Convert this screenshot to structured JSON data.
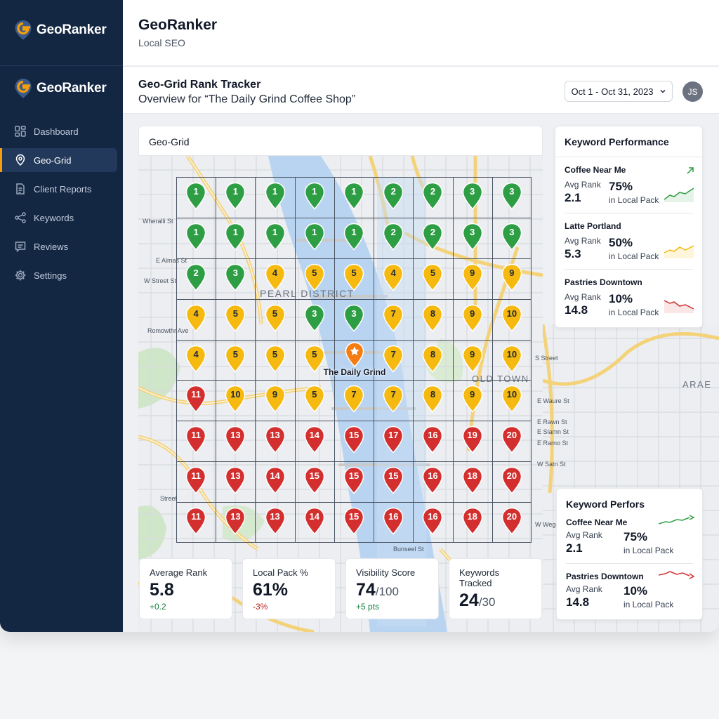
{
  "brand": {
    "name": "GeoRanker",
    "accent": "#f59e0b"
  },
  "sidebar": {
    "items": [
      {
        "label": "Dashboard",
        "icon": "dashboard-icon"
      },
      {
        "label": "Geo-Grid",
        "icon": "map-pin-icon",
        "active": true
      },
      {
        "label": "Client Reports",
        "icon": "document-icon"
      },
      {
        "label": "Keywords",
        "icon": "share-nodes-icon"
      },
      {
        "label": "Reviews",
        "icon": "message-icon"
      },
      {
        "label": "Settings",
        "icon": "gear-icon"
      }
    ]
  },
  "top_header": {
    "title": "GeoRanker",
    "subtitle": "Local SEO"
  },
  "page_header": {
    "title": "Geo-Grid Rank Tracker",
    "subtitle": "Overview for “The Daily Grind Coffee Shop”",
    "date_range": "Oct 1 - Oct 31, 2023",
    "avatar_initials": "JS"
  },
  "geo_grid": {
    "title": "Geo-Grid",
    "business_name": "The Daily Grind",
    "district_labels": [
      "PEARL DISTRICT",
      "OLD TOWN",
      "ARAE"
    ],
    "street_labels": [
      "Wheralli St",
      "E Almas St",
      "W Street St",
      "Romowthr Ave",
      "S Street",
      "E Waure St",
      "E Rawn St",
      "E Slamn St",
      "E Rarno St",
      "W Satn St",
      "W Wege",
      "Street",
      "Bunseel St"
    ],
    "rows": [
      [
        1,
        1,
        1,
        1,
        1,
        2,
        2,
        3,
        3
      ],
      [
        1,
        1,
        1,
        1,
        1,
        2,
        2,
        3,
        3
      ],
      [
        2,
        3,
        4,
        5,
        5,
        4,
        5,
        9,
        9
      ],
      [
        4,
        5,
        5,
        3,
        3,
        7,
        8,
        9,
        10
      ],
      [
        4,
        5,
        5,
        5,
        null,
        7,
        8,
        9,
        10
      ],
      [
        11,
        10,
        9,
        5,
        7,
        7,
        8,
        9,
        10
      ],
      [
        11,
        13,
        13,
        14,
        15,
        17,
        16,
        19,
        20
      ],
      [
        11,
        13,
        14,
        15,
        15,
        15,
        16,
        18,
        20
      ],
      [
        11,
        13,
        13,
        14,
        15,
        16,
        16,
        18,
        20
      ]
    ],
    "colors": {
      "green": "#2e9e44",
      "yellow": "#f5b90f",
      "red": "#d32f2f",
      "business": "#f57c10"
    }
  },
  "stats": [
    {
      "label": "Average Rank",
      "value": "5.8",
      "suffix": "",
      "change": "+0.2",
      "trend": "pos"
    },
    {
      "label": "Local Pack %",
      "value": "61%",
      "suffix": "",
      "change": "-3%",
      "trend": "neg"
    },
    {
      "label": "Visibility Score",
      "value": "74",
      "suffix": "/100",
      "change": "+5 pts",
      "trend": "pos"
    },
    {
      "label": "Keywords Tracked",
      "value": "24",
      "suffix": "/30",
      "change": "",
      "trend": ""
    }
  ],
  "keyword_panel_1": {
    "title": "Keyword Performance",
    "items": [
      {
        "name": "Coffee Near Me",
        "avg_label": "Avg Rank",
        "avg": "2.1",
        "pct": "75%",
        "pct_label": "in Local Pack",
        "trend_color": "#2e9e44"
      },
      {
        "name": "Latte Portland",
        "avg_label": "Avg Rank",
        "avg": "5.3",
        "pct": "50%",
        "pct_label": "in Local Pack",
        "trend_color": "#f5b90f"
      },
      {
        "name": "Pastries Downtown",
        "avg_label": "Avg Rank",
        "avg": "14.8",
        "pct": "10%",
        "pct_label": "in Local Pack",
        "trend_color": "#d32f2f"
      }
    ]
  },
  "keyword_panel_2": {
    "title": "Keyword Perfors",
    "items": [
      {
        "name": "Coffee Near Me",
        "avg_label": "Avg Rank",
        "avg": "2.1",
        "pct": "75%",
        "pct_label": "in Local Pack",
        "trend_color": "#2e9e44"
      },
      {
        "name": "Pastries Downtown",
        "avg_label": "Avg Rank",
        "avg": "14.8",
        "pct": "10%",
        "pct_label": "in Local Pack",
        "trend_color": "#d32f2f"
      }
    ]
  }
}
